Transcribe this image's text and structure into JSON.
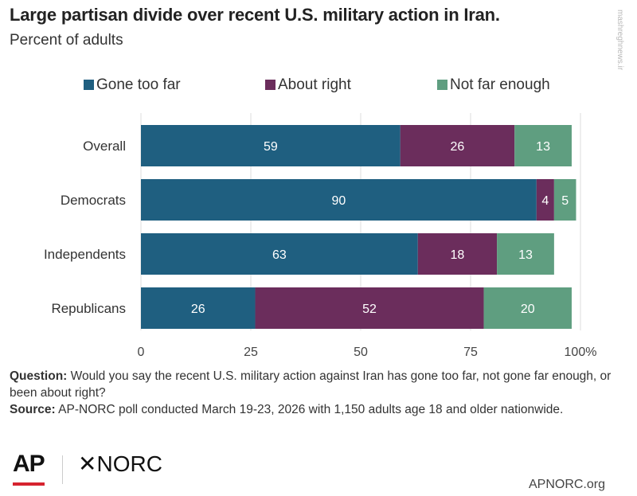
{
  "header": {
    "title": "Large partisan divide over recent U.S. military action in Iran.",
    "subtitle": "Percent of adults"
  },
  "notes": {
    "question_label": "Question:",
    "question_text": " Would you say the recent U.S. military action against Iran has gone too far, not gone far enough, or been about right?",
    "source_label": "Source:",
    "source_text": " AP-NORC poll conducted March 19-23, 2026 with 1,150 adults age 18 and older nationwide."
  },
  "footer": {
    "logo_ap": "AP",
    "logo_norc": "NORC",
    "site": "APNORC.org",
    "watermark": "mashreghnews.ir"
  },
  "colors": {
    "gone_too_far": "#1f5f80",
    "about_right": "#6b2d5c",
    "not_far_enough": "#5f9e80",
    "logo_red": "#d6232f"
  },
  "chart_data": {
    "type": "bar",
    "orientation": "horizontal",
    "stacked": true,
    "categories": [
      "Overall",
      "Democrats",
      "Independents",
      "Republicans"
    ],
    "series": [
      {
        "name": "Gone too far",
        "values": [
          59,
          90,
          63,
          26
        ],
        "color": "#1f5f80"
      },
      {
        "name": "About right",
        "values": [
          26,
          4,
          18,
          52
        ],
        "color": "#6b2d5c"
      },
      {
        "name": "Not far enough",
        "values": [
          13,
          5,
          13,
          20
        ],
        "color": "#5f9e80"
      }
    ],
    "xticks": [
      "0",
      "25",
      "50",
      "75",
      "100%"
    ],
    "xlim": [
      0,
      100
    ],
    "legend_position": "top",
    "grid": true
  }
}
